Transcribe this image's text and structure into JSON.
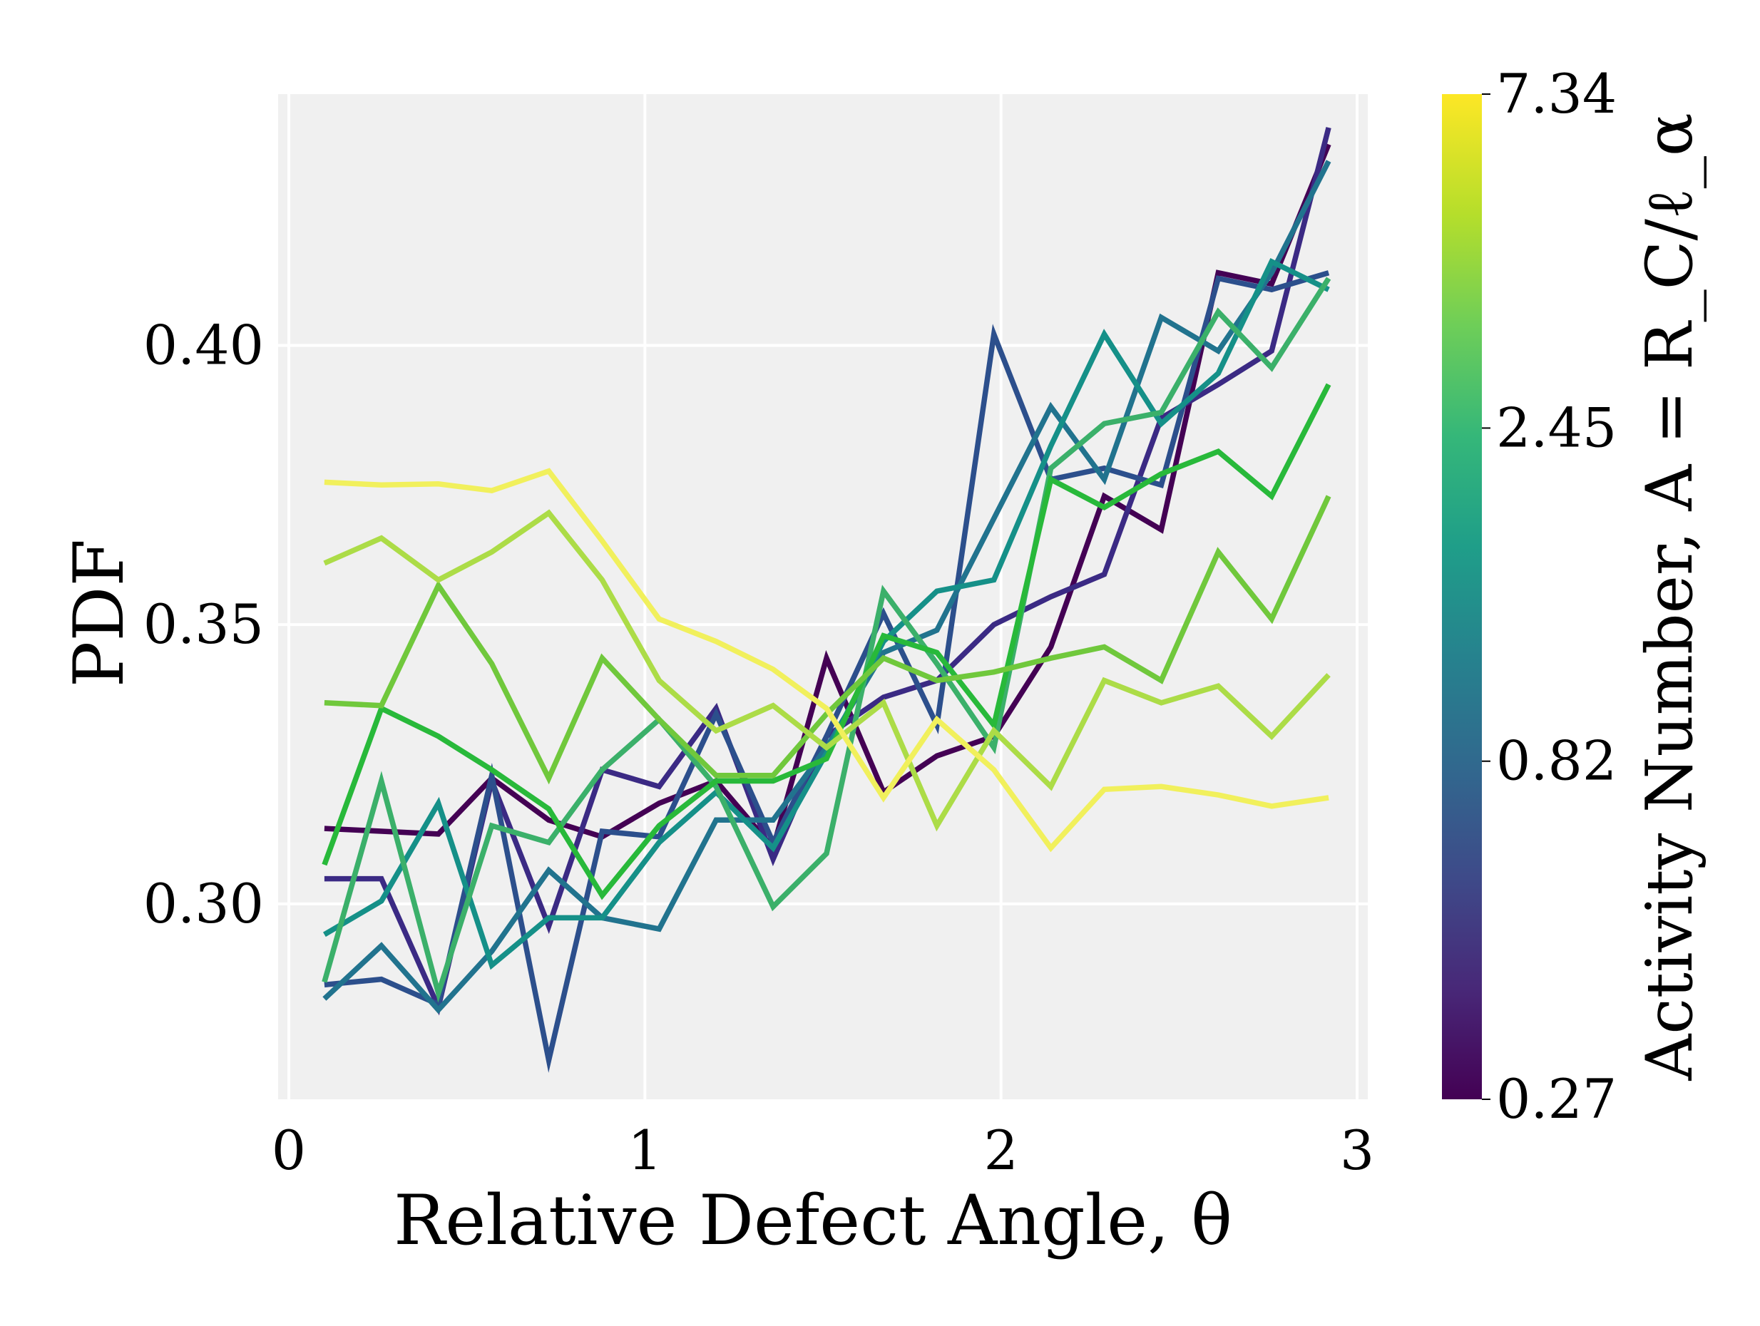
{
  "chart_data": {
    "type": "line",
    "xlabel": "Relative Defect Angle, θ",
    "ylabel": "PDF",
    "xlim": [
      -0.03,
      3.03
    ],
    "ylim": [
      0.265,
      0.445
    ],
    "xticks": [
      0,
      1,
      2,
      3
    ],
    "xtick_labels": [
      "0",
      "1",
      "2",
      "3"
    ],
    "yticks": [
      0.3,
      0.35,
      0.4
    ],
    "ytick_labels": [
      "0.30",
      "0.35",
      "0.40"
    ],
    "grid": true,
    "background": "#f0f0f0",
    "x": [
      0.1,
      0.26,
      0.42,
      0.57,
      0.73,
      0.88,
      1.04,
      1.2,
      1.36,
      1.51,
      1.67,
      1.82,
      1.98,
      2.14,
      2.29,
      2.45,
      2.61,
      2.76,
      2.92
    ],
    "colorbar": {
      "label": "Activity Number, A = R_C/ℓ_α",
      "tick_labels": [
        "0.27",
        "0.82",
        "2.45",
        "7.34"
      ],
      "colormap": "viridis",
      "scale": "log",
      "range": [
        0.27,
        7.34
      ],
      "ticks": [
        0.27,
        0.82,
        2.45,
        7.34
      ]
    },
    "series": [
      {
        "color": "#440154",
        "values": [
          0.3135,
          0.313,
          0.3125,
          0.3225,
          0.315,
          0.312,
          0.318,
          0.322,
          0.31,
          0.344,
          0.32,
          0.3265,
          0.33,
          0.346,
          0.373,
          0.367,
          0.413,
          0.411,
          0.436
        ]
      },
      {
        "color": "#3b2a84",
        "values": [
          0.3045,
          0.3045,
          0.2815,
          0.322,
          0.296,
          0.324,
          0.321,
          0.335,
          0.308,
          0.33,
          0.337,
          0.34,
          0.35,
          0.355,
          0.359,
          0.387,
          0.393,
          0.399,
          0.439
        ]
      },
      {
        "color": "#2c4f8c",
        "values": [
          0.2855,
          0.2865,
          0.282,
          0.323,
          0.272,
          0.313,
          0.312,
          0.334,
          0.311,
          0.33,
          0.352,
          0.332,
          0.402,
          0.376,
          0.378,
          0.375,
          0.412,
          0.41,
          0.413
        ]
      },
      {
        "color": "#21738e",
        "values": [
          0.283,
          0.2925,
          0.281,
          0.2915,
          0.306,
          0.2975,
          0.2955,
          0.315,
          0.315,
          0.328,
          0.345,
          0.349,
          0.369,
          0.389,
          0.376,
          0.405,
          0.399,
          0.413,
          0.433
        ]
      },
      {
        "color": "#159088",
        "values": [
          0.2945,
          0.3005,
          0.318,
          0.289,
          0.2975,
          0.2975,
          0.311,
          0.32,
          0.31,
          0.327,
          0.347,
          0.356,
          0.358,
          0.382,
          0.402,
          0.386,
          0.395,
          0.415,
          0.41
        ]
      },
      {
        "color": "#3bb06a",
        "values": [
          0.286,
          0.322,
          0.284,
          0.314,
          0.311,
          0.324,
          0.333,
          0.321,
          0.2995,
          0.309,
          0.356,
          0.343,
          0.328,
          0.378,
          0.386,
          0.388,
          0.406,
          0.396,
          0.412
        ]
      },
      {
        "color": "#28b93a",
        "values": [
          0.307,
          0.335,
          0.33,
          0.324,
          0.317,
          0.3015,
          0.314,
          0.322,
          0.322,
          0.326,
          0.348,
          0.345,
          0.332,
          0.376,
          0.371,
          0.377,
          0.381,
          0.373,
          0.393
        ]
      },
      {
        "color": "#70c83c",
        "values": [
          0.336,
          0.3355,
          0.357,
          0.343,
          0.3225,
          0.344,
          0.333,
          0.323,
          0.323,
          0.334,
          0.344,
          0.34,
          0.3415,
          0.344,
          0.346,
          0.34,
          0.363,
          0.351,
          0.373
        ]
      },
      {
        "color": "#acdc47",
        "values": [
          0.361,
          0.3655,
          0.358,
          0.363,
          0.37,
          0.358,
          0.34,
          0.331,
          0.3355,
          0.328,
          0.336,
          0.314,
          0.331,
          0.321,
          0.34,
          0.336,
          0.339,
          0.33,
          0.341
        ]
      },
      {
        "color": "#f1f05c",
        "values": [
          0.3755,
          0.375,
          0.3752,
          0.374,
          0.3775,
          0.365,
          0.351,
          0.347,
          0.342,
          0.335,
          0.319,
          0.333,
          0.324,
          0.31,
          0.3205,
          0.321,
          0.3195,
          0.3175,
          0.319
        ]
      }
    ]
  }
}
